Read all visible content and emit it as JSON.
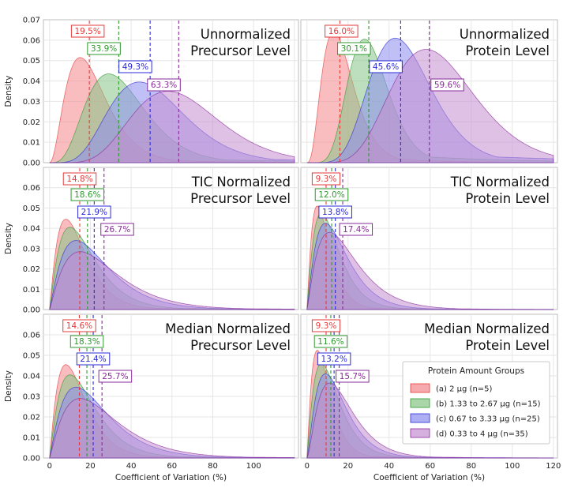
{
  "chart_data": {
    "type": "area",
    "xlabel": "Coefficient of Variation (%)",
    "ylabel": "Density",
    "x_ticks": [
      "0",
      "20",
      "40",
      "60",
      "80",
      "100",
      "120"
    ],
    "legend": {
      "title": "Protein Amount Groups",
      "placement": "lower-right panel, right side",
      "entries": [
        "(a) 2 μg (n=5)",
        "(b) 1.33 to 2.67 μg (n=15)",
        "(c) 0.67 to 3.33 μg (n=25)",
        "(d) 0.33 to 4 μg (n=35)"
      ]
    },
    "series_colors": {
      "fill": [
        "#f4868a",
        "#86c486",
        "#8c8cf0",
        "#c48ed0"
      ],
      "line": [
        "#e63b3b",
        "#2e9a2e",
        "#2b2bd8",
        "#8a2a9a"
      ]
    },
    "grid": true,
    "panels": [
      {
        "title_lines": [
          "Unnormalized",
          "Precursor Level"
        ],
        "xlim": [
          -3,
          122
        ],
        "ylim": [
          0,
          0.07
        ],
        "y_ticks": [
          "0.00",
          "0.01",
          "0.02",
          "0.03",
          "0.04",
          "0.05",
          "0.06",
          "0.07"
        ],
        "x_tick_labels_shown": false,
        "medians": [
          19.5,
          33.9,
          49.3,
          63.3
        ],
        "median_labels": [
          "19.5%",
          "33.9%",
          "49.3%",
          "63.3%"
        ],
        "peaks": [
          {
            "x": 15,
            "y": 0.0515
          },
          {
            "x": 29,
            "y": 0.0435
          },
          {
            "x": 44,
            "y": 0.0395
          },
          {
            "x": 58,
            "y": 0.035
          }
        ]
      },
      {
        "title_lines": [
          "Unnormalized",
          "Protein Level"
        ],
        "xlim": [
          -3,
          122
        ],
        "ylim": [
          0,
          0.07
        ],
        "y_ticks": [],
        "x_tick_labels_shown": false,
        "medians": [
          16.0,
          30.1,
          45.6,
          59.6
        ],
        "median_labels": [
          "16.0%",
          "30.1%",
          "45.6%",
          "59.6%"
        ],
        "peaks": [
          {
            "x": 13,
            "y": 0.0645
          },
          {
            "x": 28,
            "y": 0.0605
          },
          {
            "x": 43,
            "y": 0.061
          },
          {
            "x": 58,
            "y": 0.0555
          }
        ]
      },
      {
        "title_lines": [
          "TIC Normalized",
          "Precursor Level"
        ],
        "xlim": [
          -3,
          122
        ],
        "ylim": [
          0,
          0.07
        ],
        "y_ticks": [
          "0.00",
          "0.01",
          "0.02",
          "0.03",
          "0.04",
          "0.05",
          "0.06"
        ],
        "x_tick_labels_shown": false,
        "medians": [
          14.8,
          18.6,
          21.9,
          26.7
        ],
        "median_labels": [
          "14.8%",
          "18.6%",
          "21.9%",
          "26.7%"
        ],
        "peaks": [
          {
            "x": 8,
            "y": 0.0445
          },
          {
            "x": 10,
            "y": 0.0405
          },
          {
            "x": 13,
            "y": 0.034
          },
          {
            "x": 15,
            "y": 0.0285
          }
        ]
      },
      {
        "title_lines": [
          "TIC Normalized",
          "Protein Level"
        ],
        "xlim": [
          -3,
          122
        ],
        "ylim": [
          0,
          0.07
        ],
        "y_ticks": [],
        "x_tick_labels_shown": false,
        "medians": [
          9.3,
          12.0,
          13.8,
          17.4
        ],
        "median_labels": [
          "9.3%",
          "12.0%",
          "13.8%",
          "17.4%"
        ],
        "peaks": [
          {
            "x": 5,
            "y": 0.051
          },
          {
            "x": 7,
            "y": 0.0475
          },
          {
            "x": 9,
            "y": 0.0425
          },
          {
            "x": 11,
            "y": 0.038
          }
        ]
      },
      {
        "title_lines": [
          "Median Normalized",
          "Precursor Level"
        ],
        "xlim": [
          -3,
          122
        ],
        "ylim": [
          0,
          0.07
        ],
        "y_ticks": [
          "0.00",
          "0.01",
          "0.02",
          "0.03",
          "0.04",
          "0.05",
          "0.06"
        ],
        "x_tick_labels_shown": true,
        "medians": [
          14.6,
          18.3,
          21.4,
          25.7
        ],
        "median_labels": [
          "14.6%",
          "18.3%",
          "21.4%",
          "25.7%"
        ],
        "peaks": [
          {
            "x": 8,
            "y": 0.0455
          },
          {
            "x": 10,
            "y": 0.0405
          },
          {
            "x": 13,
            "y": 0.0345
          },
          {
            "x": 15,
            "y": 0.029
          }
        ]
      },
      {
        "title_lines": [
          "Median Normalized",
          "Protein Level"
        ],
        "xlim": [
          -3,
          122
        ],
        "ylim": [
          0,
          0.07
        ],
        "y_ticks": [],
        "x_tick_labels_shown": true,
        "medians": [
          9.3,
          11.6,
          13.2,
          15.7
        ],
        "median_labels": [
          "9.3%",
          "11.6%",
          "13.2%",
          "15.7%"
        ],
        "peaks": [
          {
            "x": 5,
            "y": 0.0525
          },
          {
            "x": 7,
            "y": 0.046
          },
          {
            "x": 9,
            "y": 0.041
          },
          {
            "x": 11,
            "y": 0.0365
          }
        ]
      }
    ]
  }
}
